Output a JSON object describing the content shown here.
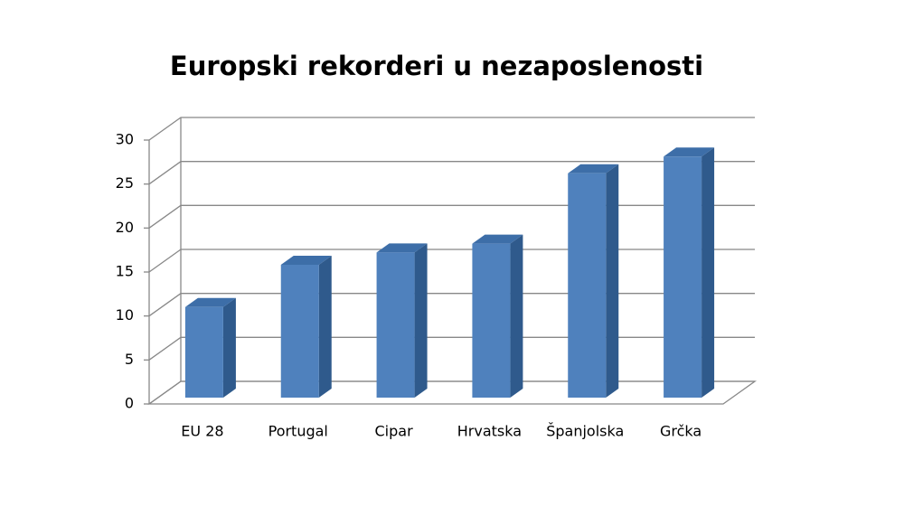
{
  "chart_data": {
    "type": "bar",
    "title": "Europski rekorderi u nezaposlenosti",
    "categories": [
      "EU 28",
      "Portugal",
      "Cipar",
      "Hrvatska",
      "Španjolska",
      "Grčka"
    ],
    "values": [
      10.3,
      15.1,
      16.5,
      17.5,
      25.5,
      27.4
    ],
    "color": "#4f81bd",
    "ylim": [
      0,
      30
    ],
    "yticks": [
      0,
      5,
      10,
      15,
      20,
      25,
      30
    ],
    "grid": true
  }
}
